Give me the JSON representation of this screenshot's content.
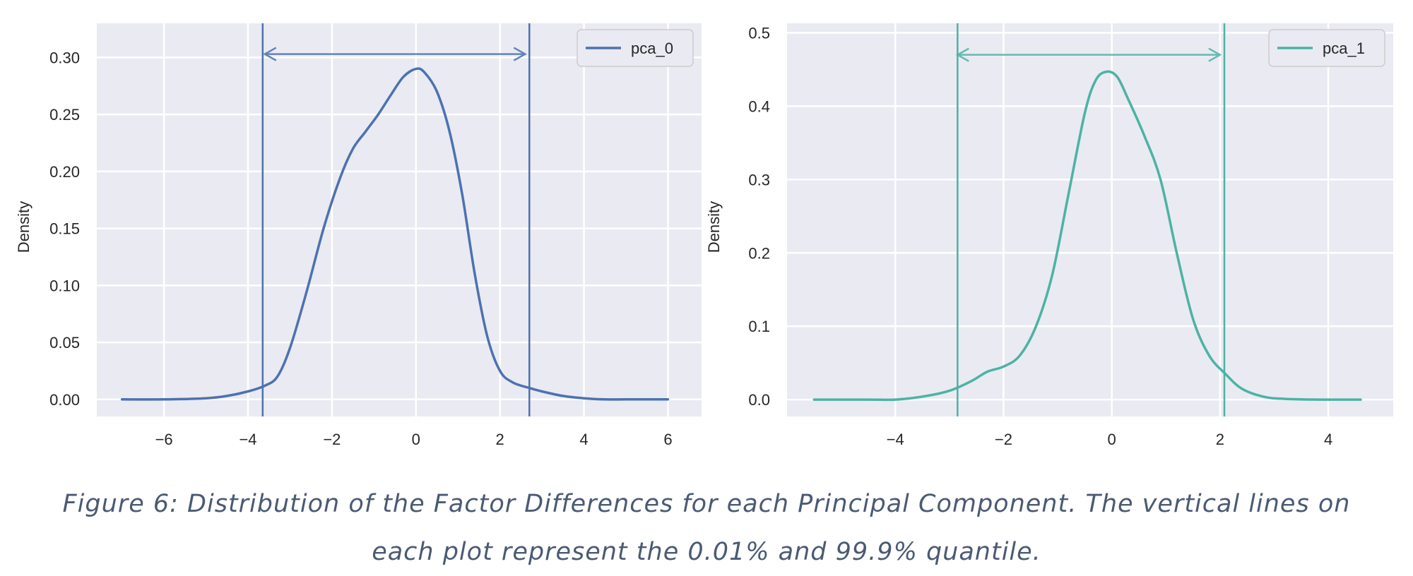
{
  "chart_data": [
    {
      "type": "line",
      "ylabel": "Density",
      "xlim": [
        -7.6,
        6.8
      ],
      "ylim": [
        -0.015,
        0.33
      ],
      "xticks": [
        -6,
        -4,
        -2,
        0,
        2,
        4,
        6
      ],
      "xtick_labels": [
        "−6",
        "−4",
        "−2",
        "0",
        "2",
        "4",
        "6"
      ],
      "yticks": [
        0.0,
        0.05,
        0.1,
        0.15,
        0.2,
        0.25,
        0.3
      ],
      "ytick_labels": [
        "0.00",
        "0.05",
        "0.10",
        "0.15",
        "0.20",
        "0.25",
        "0.30"
      ],
      "grid": true,
      "legend_position": "top-right",
      "color": "#4c72b0",
      "series": [
        {
          "name": "pca_0",
          "x": [
            -7.0,
            -6.0,
            -5.0,
            -4.5,
            -4.0,
            -3.6,
            -3.3,
            -3.0,
            -2.6,
            -2.2,
            -1.8,
            -1.5,
            -1.2,
            -0.9,
            -0.6,
            -0.3,
            0.0,
            0.2,
            0.5,
            0.8,
            1.1,
            1.4,
            1.7,
            2.0,
            2.3,
            2.7,
            3.0,
            3.5,
            4.0,
            4.5,
            5.0,
            5.5,
            6.0
          ],
          "y": [
            0.0,
            0.0,
            0.001,
            0.003,
            0.007,
            0.012,
            0.02,
            0.045,
            0.095,
            0.15,
            0.195,
            0.22,
            0.235,
            0.25,
            0.267,
            0.283,
            0.29,
            0.287,
            0.27,
            0.235,
            0.18,
            0.11,
            0.055,
            0.025,
            0.015,
            0.01,
            0.007,
            0.003,
            0.001,
            0.0,
            0.0,
            0.0,
            0.0
          ]
        }
      ],
      "vlines": [
        -3.65,
        2.7
      ],
      "arrow": {
        "from": -3.6,
        "to": 2.6,
        "y": 0.303
      }
    },
    {
      "type": "line",
      "ylabel": "Density",
      "xlim": [
        -6.0,
        5.2
      ],
      "ylim": [
        -0.023,
        0.513
      ],
      "xticks": [
        -4,
        -2,
        0,
        2,
        4
      ],
      "xtick_labels": [
        "−4",
        "−2",
        "0",
        "2",
        "4"
      ],
      "yticks": [
        0.0,
        0.1,
        0.2,
        0.3,
        0.4,
        0.5
      ],
      "ytick_labels": [
        "0.0",
        "0.1",
        "0.2",
        "0.3",
        "0.4",
        "0.5"
      ],
      "grid": true,
      "legend_position": "top-right",
      "color": "#4cb3a4",
      "series": [
        {
          "name": "pca_1",
          "x": [
            -5.5,
            -4.5,
            -4.0,
            -3.5,
            -3.0,
            -2.6,
            -2.3,
            -2.0,
            -1.7,
            -1.4,
            -1.1,
            -0.8,
            -0.5,
            -0.3,
            -0.1,
            0.1,
            0.3,
            0.6,
            0.9,
            1.2,
            1.5,
            1.8,
            2.1,
            2.4,
            2.8,
            3.2,
            3.8,
            4.6
          ],
          "y": [
            0.0,
            0.0,
            0.0,
            0.004,
            0.012,
            0.025,
            0.038,
            0.045,
            0.06,
            0.1,
            0.17,
            0.28,
            0.39,
            0.435,
            0.447,
            0.44,
            0.41,
            0.36,
            0.3,
            0.2,
            0.11,
            0.06,
            0.035,
            0.015,
            0.004,
            0.001,
            0.0,
            0.0
          ]
        }
      ],
      "vlines": [
        -2.85,
        2.08
      ],
      "arrow": {
        "from": -2.85,
        "to": 2.0,
        "y": 0.47
      }
    }
  ],
  "caption": {
    "line1": "Figure 6: Distribution of the Factor Differences for each Principal Component. The vertical lines on",
    "line2": "each plot represent the 0.01% and 99.9% quantile."
  }
}
